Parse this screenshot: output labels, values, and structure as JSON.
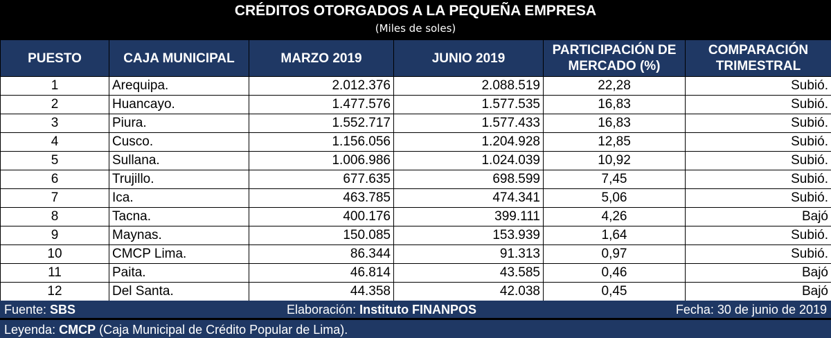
{
  "header": {
    "title": "CRÉDITOS OTORGADOS A LA PEQUEÑA EMPRESA",
    "subtitle": "(Miles de soles)"
  },
  "table": {
    "columns": {
      "rank": "PUESTO",
      "name": "CAJA MUNICIPAL",
      "march": "MARZO 2019",
      "june": "JUNIO 2019",
      "share_line1": "PARTICIPACIÓN DE",
      "share_line2": "MERCADO (%)",
      "trend_line1": "COMPARACIÓN",
      "trend_line2": "TRIMESTRAL"
    },
    "rows": [
      {
        "rank": "1",
        "name": "Arequipa.",
        "march": "2.012.376",
        "june": "2.088.519",
        "share": "22,28",
        "trend": "Subió."
      },
      {
        "rank": "2",
        "name": "Huancayo.",
        "march": "1.477.576",
        "june": "1.577.535",
        "share": "16,83",
        "trend": "Subió."
      },
      {
        "rank": "3",
        "name": "Piura.",
        "march": "1.552.717",
        "june": "1.577.433",
        "share": "16,83",
        "trend": "Subió."
      },
      {
        "rank": "4",
        "name": "Cusco.",
        "march": "1.156.056",
        "june": "1.204.928",
        "share": "12,85",
        "trend": "Subió."
      },
      {
        "rank": "5",
        "name": "Sullana.",
        "march": "1.006.986",
        "june": "1.024.039",
        "share": "10,92",
        "trend": "Subió."
      },
      {
        "rank": "6",
        "name": "Trujillo.",
        "march": "677.635",
        "june": "698.599",
        "share": "7,45",
        "trend": "Subió."
      },
      {
        "rank": "7",
        "name": "Ica.",
        "march": "463.785",
        "june": "474.341",
        "share": "5,06",
        "trend": "Subió."
      },
      {
        "rank": "8",
        "name": "Tacna.",
        "march": "400.176",
        "june": "399.111",
        "share": "4,26",
        "trend": "Bajó"
      },
      {
        "rank": "9",
        "name": "Maynas.",
        "march": "150.085",
        "june": "153.939",
        "share": "1,64",
        "trend": "Subió."
      },
      {
        "rank": "10",
        "name": "CMCP Lima.",
        "march": "86.344",
        "june": "91.313",
        "share": "0,97",
        "trend": "Subió."
      },
      {
        "rank": "11",
        "name": "Paita.",
        "march": "46.814",
        "june": "43.585",
        "share": "0,46",
        "trend": "Bajó"
      },
      {
        "rank": "12",
        "name": "Del Santa.",
        "march": "44.358",
        "june": "42.038",
        "share": "0,45",
        "trend": "Bajó"
      }
    ]
  },
  "footer": {
    "source_label": "Fuente: ",
    "source_value": "SBS",
    "prepared_label": "Elaboración: ",
    "prepared_value": "Instituto FINANPOS",
    "date": "Fecha: 30 de junio de 2019",
    "legend_label": "Leyenda: ",
    "legend_value": "CMCP",
    "legend_text": " (Caja Municipal de Crédito Popular de Lima)."
  },
  "colors": {
    "header_bg": "#1f3864",
    "title_bg": "#000000",
    "text_on_dark": "#ffffff"
  }
}
